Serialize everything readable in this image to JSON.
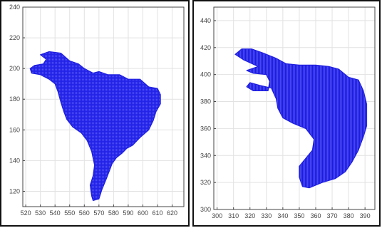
{
  "chart_data": [
    {
      "type": "scatter",
      "title": "",
      "xlabel": "",
      "ylabel": "",
      "xlim": [
        518,
        628
      ],
      "ylim": [
        110,
        240
      ],
      "xticks": [
        520,
        530,
        540,
        550,
        560,
        570,
        580,
        590,
        600,
        610,
        620
      ],
      "yticks": [
        120,
        140,
        160,
        180,
        200,
        220,
        240
      ],
      "grid": true,
      "marker_color": "#1f1fe0",
      "series": [
        {
          "description_of_shape_outline": [
            [
              530,
              209
            ],
            [
              536,
              211
            ],
            [
              544,
              210
            ],
            [
              550,
              205
            ],
            [
              556,
              203
            ],
            [
              560,
              200
            ],
            [
              566,
              197
            ],
            [
              570,
              198
            ],
            [
              576,
              196
            ],
            [
              584,
              196
            ],
            [
              590,
              193
            ],
            [
              598,
              193
            ],
            [
              604,
              188
            ],
            [
              610,
              187
            ],
            [
              612,
              183
            ],
            [
              612,
              177
            ],
            [
              609,
              172
            ],
            [
              607,
              166
            ],
            [
              604,
              160
            ],
            [
              598,
              155
            ],
            [
              593,
              150
            ],
            [
              589,
              148
            ],
            [
              586,
              145
            ],
            [
              582,
              142
            ],
            [
              579,
              138
            ],
            [
              577,
              133
            ],
            [
              575,
              128
            ],
            [
              572,
              121
            ],
            [
              570,
              115
            ],
            [
              566,
              114
            ],
            [
              565,
              117
            ],
            [
              564,
              124
            ],
            [
              566,
              130
            ],
            [
              567,
              137
            ],
            [
              565,
              146
            ],
            [
              562,
              153
            ],
            [
              558,
              158
            ],
            [
              552,
              162
            ],
            [
              548,
              167
            ],
            [
              546,
              172
            ],
            [
              544,
              178
            ],
            [
              542,
              185
            ],
            [
              540,
              190
            ],
            [
              536,
              193
            ],
            [
              530,
              196
            ],
            [
              524,
              197
            ],
            [
              523,
              200
            ],
            [
              526,
              202
            ],
            [
              532,
              203
            ],
            [
              534,
              206
            ]
          ]
        }
      ]
    },
    {
      "type": "scatter",
      "title": "",
      "xlabel": "",
      "ylabel": "",
      "xlim": [
        298,
        396
      ],
      "ylim": [
        300,
        450
      ],
      "xticks": [
        300,
        310,
        320,
        330,
        340,
        350,
        360,
        370,
        380,
        390
      ],
      "yticks": [
        300,
        320,
        340,
        360,
        380,
        400,
        420,
        440
      ],
      "grid": true,
      "marker_color": "#1f1fe0",
      "series": [
        {
          "description_of_shape_outline": [
            [
              311,
              415
            ],
            [
              315,
              419
            ],
            [
              321,
              419
            ],
            [
              328,
              416
            ],
            [
              336,
              412
            ],
            [
              342,
              408
            ],
            [
              350,
              407
            ],
            [
              360,
              407
            ],
            [
              368,
              406
            ],
            [
              374,
              404
            ],
            [
              380,
              398
            ],
            [
              386,
              396
            ],
            [
              389,
              388
            ],
            [
              391,
              378
            ],
            [
              391,
              362
            ],
            [
              389,
              354
            ],
            [
              386,
              344
            ],
            [
              382,
              335
            ],
            [
              378,
              328
            ],
            [
              372,
              323
            ],
            [
              364,
              320
            ],
            [
              356,
              316
            ],
            [
              352,
              317
            ],
            [
              350,
              324
            ],
            [
              350,
              332
            ],
            [
              354,
              338
            ],
            [
              358,
              344
            ],
            [
              359,
              352
            ],
            [
              354,
              360
            ],
            [
              346,
              364
            ],
            [
              340,
              368
            ],
            [
              337,
              375
            ],
            [
              336,
              382
            ],
            [
              333,
              390
            ],
            [
              326,
              392
            ],
            [
              320,
              394
            ],
            [
              318,
              391
            ],
            [
              322,
              388
            ],
            [
              331,
              388
            ],
            [
              332,
              395
            ],
            [
              330,
              400
            ],
            [
              322,
              401
            ],
            [
              318,
              403
            ],
            [
              325,
              406
            ],
            [
              316,
              411
            ]
          ]
        }
      ]
    }
  ]
}
